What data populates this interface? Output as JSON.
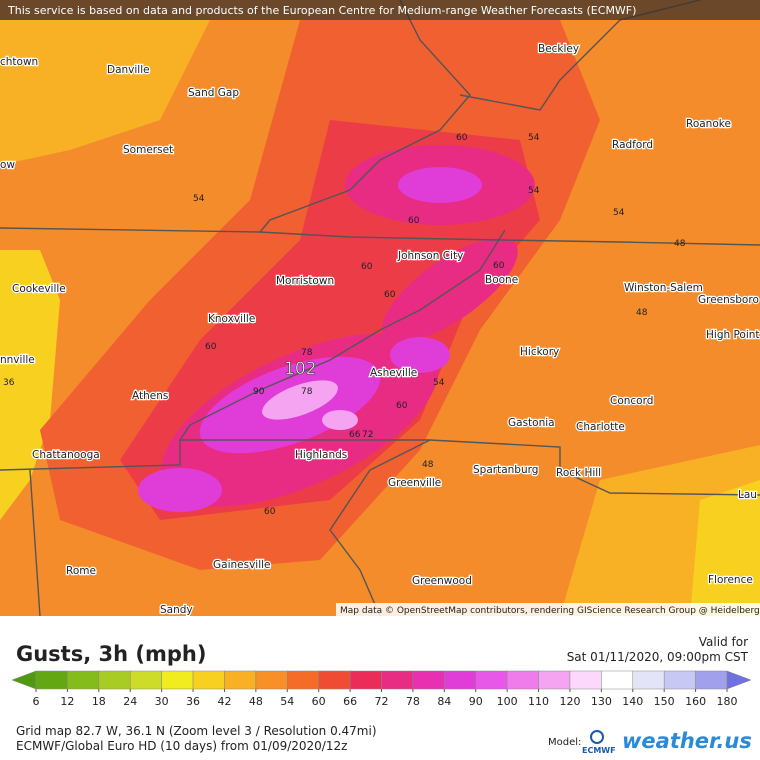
{
  "banner": "This service is based on data and products of the European Centre for Medium-range Weather Forecasts (ECMWF)",
  "cities": [
    "chtown",
    "Danville",
    "Sand Gap",
    "Beckley",
    "Roanoke",
    "Radford",
    "Somerset",
    "ow",
    "Johnson City",
    "Morristown",
    "Boone",
    "Winston-Salem",
    "Greensboro",
    "High Point",
    "Cookeville",
    "Knoxville",
    "Hickory",
    "nnville",
    "Athens",
    "Asheville",
    "Concord",
    "Gastonia",
    "Charlotte",
    "Chattanooga",
    "Highlands",
    "Spartanburg",
    "Rock Hill",
    "Greenville",
    "Lau",
    "Rome",
    "Gainesville",
    "Greenwood",
    "Florence",
    "Sandy"
  ],
  "contour_labels": [
    "60",
    "54",
    "54",
    "54",
    "54",
    "60",
    "48",
    "60",
    "60",
    "60",
    "48",
    "60",
    "78",
    "36",
    "90",
    "78",
    "54",
    "60",
    "66",
    "72",
    "48",
    "60"
  ],
  "max_label": "102",
  "attribution": "Map data © OpenStreetMap contributors, rendering GIScience Research Group @ Heidelberg University",
  "title": "Gusts, 3h (mph)",
  "valid_label": "Valid for",
  "valid_time": "Sat 01/11/2020, 09:00pm CST",
  "colorbar": {
    "ticks": [
      6,
      12,
      18,
      24,
      30,
      36,
      42,
      48,
      54,
      60,
      66,
      72,
      78,
      84,
      90,
      100,
      110,
      120,
      130,
      140,
      150,
      160,
      180
    ],
    "colors": [
      "#4f9a0f",
      "#63a812",
      "#84bc1c",
      "#a8cc24",
      "#ccdc28",
      "#f0ec20",
      "#f8d020",
      "#f8b024",
      "#f89028",
      "#f46c28",
      "#f04c34",
      "#ec2c58",
      "#e82c84",
      "#e830b0",
      "#e03cd8",
      "#e858e8",
      "#f07cec",
      "#f4a4f0",
      "#fcd8fc",
      "#ffffff",
      "#e4e4f8",
      "#c8c8f4",
      "#a0a0ec",
      "#7070e0"
    ]
  },
  "footer": [
    "Grid map 82.7 W, 36.1 N (Zoom level 3 / Resolution 0.47mi)",
    "ECMWF/Global Euro HD (10 days) from 01/09/2020/12z"
  ],
  "model_label": "Model:",
  "ecmwf_logo": "ECMWF",
  "brand": "weather.us"
}
